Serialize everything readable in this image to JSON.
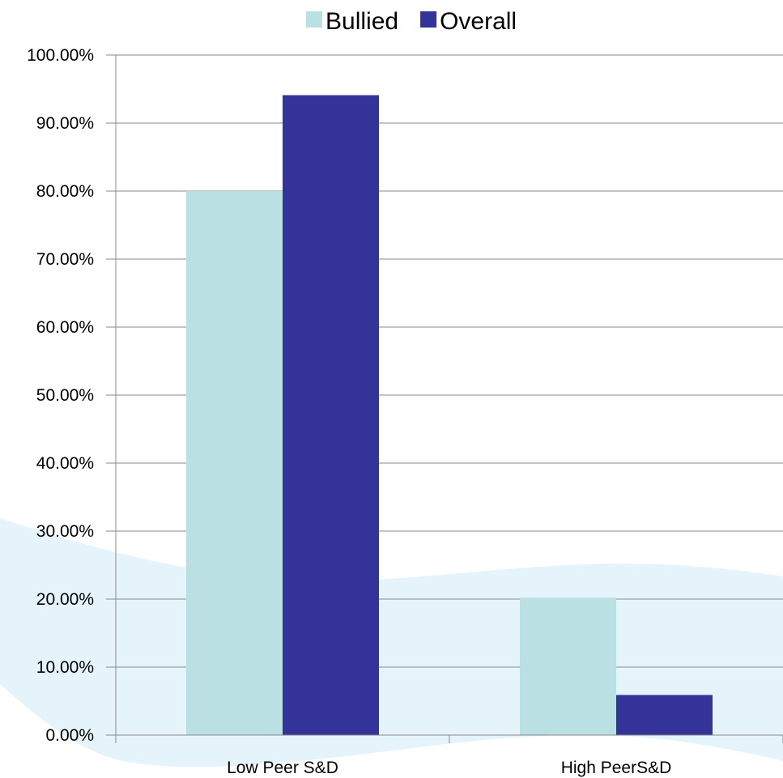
{
  "chart_data": {
    "type": "bar",
    "categories": [
      "Low Peer S&D",
      "High PeerS&D"
    ],
    "series": [
      {
        "name": "Bullied",
        "values": [
          80.0,
          20.2
        ],
        "color": "#bae0e3"
      },
      {
        "name": "Overall",
        "values": [
          94.1,
          5.9
        ],
        "color": "#343399"
      }
    ],
    "ylim": [
      0,
      100
    ],
    "yticks": [
      0,
      10,
      20,
      30,
      40,
      50,
      60,
      70,
      80,
      90,
      100
    ],
    "ytick_labels": [
      "0.00%",
      "10.00%",
      "20.00%",
      "30.00%",
      "40.00%",
      "50.00%",
      "60.00%",
      "70.00%",
      "80.00%",
      "90.00%",
      "100.00%"
    ],
    "grid": true,
    "legend_position": "top-center",
    "background_wave_color": "#e4f4fa"
  }
}
